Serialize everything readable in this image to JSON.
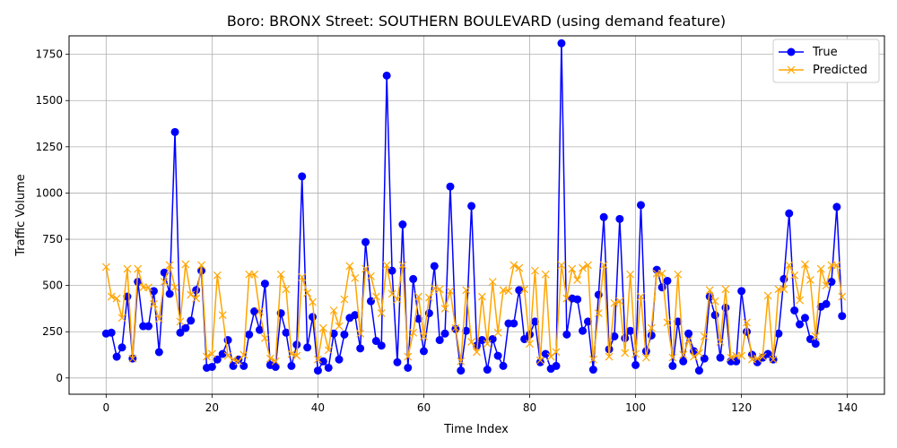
{
  "chart_data": {
    "type": "line",
    "title": "Boro: BRONX Street: SOUTHERN BOULEVARD (using demand feature)",
    "xlabel": "Time Index",
    "ylabel": "Traffic Volume",
    "xlim": [
      -7,
      147
    ],
    "ylim": [
      -88,
      1850
    ],
    "xticks": [
      0,
      20,
      40,
      60,
      80,
      100,
      120,
      140
    ],
    "yticks": [
      0,
      250,
      500,
      750,
      1000,
      1250,
      1500,
      1750
    ],
    "xtick_labels": [
      "0",
      "20",
      "40",
      "60",
      "80",
      "100",
      "120",
      "140"
    ],
    "ytick_labels": [
      "0",
      "250",
      "500",
      "750",
      "1000",
      "1250",
      "1500",
      "1750"
    ],
    "grid": true,
    "legend_position": "top-right",
    "series": [
      {
        "name": "True",
        "color": "#0000ff",
        "marker": "o",
        "values": [
          240,
          245,
          115,
          165,
          440,
          105,
          520,
          280,
          280,
          470,
          140,
          570,
          455,
          1330,
          245,
          270,
          310,
          475,
          580,
          55,
          60,
          100,
          130,
          205,
          65,
          100,
          65,
          235,
          360,
          260,
          510,
          70,
          60,
          350,
          245,
          65,
          180,
          1090,
          165,
          330,
          40,
          90,
          55,
          240,
          100,
          235,
          325,
          340,
          160,
          735,
          415,
          200,
          175,
          1635,
          580,
          85,
          830,
          55,
          535,
          320,
          145,
          350,
          605,
          205,
          240,
          1035,
          265,
          40,
          255,
          930,
          175,
          205,
          45,
          210,
          120,
          65,
          295,
          295,
          475,
          210,
          235,
          305,
          85,
          130,
          50,
          65,
          1810,
          235,
          430,
          425,
          255,
          305,
          45,
          450,
          870,
          155,
          225,
          860,
          215,
          255,
          70,
          935,
          145,
          230,
          585,
          490,
          525,
          65,
          305,
          90,
          240,
          145,
          40,
          105,
          440,
          340,
          110,
          380,
          90,
          90,
          470,
          250,
          125,
          85,
          110,
          130,
          100,
          240,
          535,
          890,
          365,
          290,
          325,
          210,
          185,
          385,
          400,
          520,
          925,
          335
        ]
      },
      {
        "name": "Predicted",
        "color": "#ffa500",
        "marker": "x",
        "values": [
          600,
          440,
          430,
          325,
          590,
          105,
          590,
          490,
          490,
          400,
          320,
          520,
          610,
          490,
          305,
          615,
          450,
          430,
          610,
          115,
          130,
          555,
          340,
          120,
          100,
          90,
          125,
          560,
          560,
          360,
          215,
          105,
          90,
          560,
          480,
          130,
          120,
          545,
          460,
          410,
          100,
          270,
          150,
          365,
          280,
          425,
          605,
          540,
          240,
          590,
          550,
          440,
          350,
          610,
          455,
          425,
          610,
          115,
          245,
          440,
          225,
          435,
          485,
          480,
          375,
          470,
          270,
          90,
          475,
          195,
          140,
          440,
          185,
          520,
          245,
          475,
          470,
          610,
          595,
          480,
          185,
          580,
          95,
          560,
          115,
          140,
          610,
          430,
          590,
          530,
          595,
          610,
          100,
          350,
          610,
          115,
          405,
          415,
          135,
          560,
          130,
          440,
          110,
          270,
          565,
          565,
          300,
          110,
          560,
          125,
          205,
          115,
          135,
          225,
          475,
          415,
          195,
          480,
          110,
          120,
          120,
          300,
          100,
          105,
          115,
          445,
          100,
          480,
          480,
          610,
          555,
          420,
          615,
          530,
          225,
          590,
          500,
          610,
          610,
          440
        ]
      }
    ]
  }
}
